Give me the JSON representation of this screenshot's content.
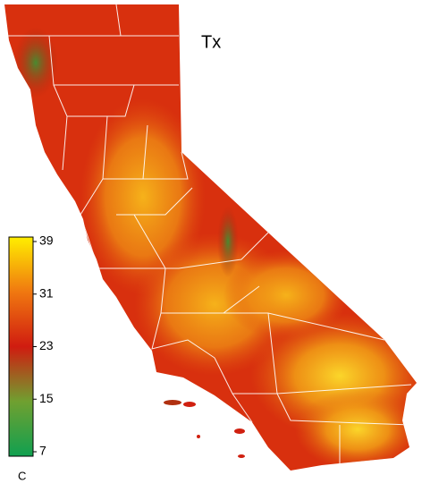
{
  "map": {
    "title": "Tx",
    "colorbar": {
      "unit": "C",
      "lim": [
        7,
        39
      ],
      "ticks": [
        7,
        15,
        23,
        31,
        39
      ],
      "colors": [
        "#10a050",
        "#70a030",
        "#d01c10",
        "#f07810",
        "#ffee00"
      ]
    }
  }
}
